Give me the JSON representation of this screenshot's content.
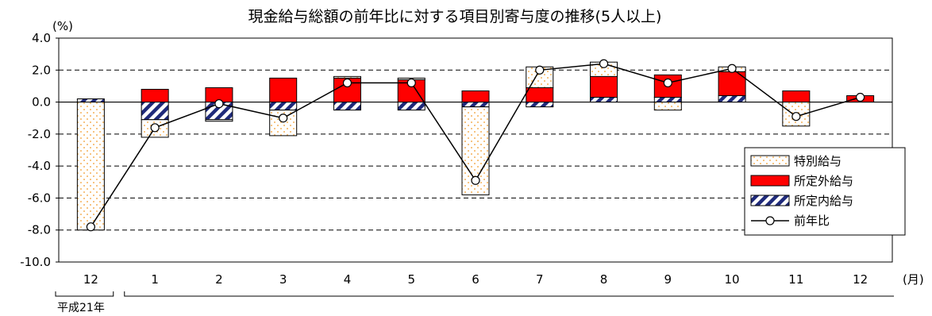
{
  "chart_data": {
    "type": "bar",
    "title": "現金給与総額の前年比に対する項目別寄与度の推移(5人以上)",
    "ylabel": "(%)",
    "xlabel": "(月)",
    "ylim": [
      -10,
      4
    ],
    "yticks": [
      "4.0",
      "2.0",
      "0.0",
      "-2.0",
      "-4.0",
      "-6.0",
      "-8.0",
      "-10.0"
    ],
    "grid": true,
    "legend_position": "right",
    "categories": [
      "12",
      "1",
      "2",
      "3",
      "4",
      "5",
      "6",
      "7",
      "8",
      "9",
      "10",
      "11",
      "12"
    ],
    "year_label": "平成21年",
    "series": [
      {
        "name": "特別給与",
        "values": [
          -8.0,
          -1.1,
          -0.1,
          -1.6,
          0.1,
          0.1,
          -5.5,
          1.3,
          0.9,
          -0.5,
          0.3,
          -1.5,
          0.0
        ]
      },
      {
        "name": "所定外給与",
        "values": [
          0.0,
          0.8,
          0.9,
          1.5,
          1.5,
          1.4,
          0.7,
          0.9,
          1.3,
          1.4,
          1.5,
          0.7,
          0.4
        ]
      },
      {
        "name": "所定内給与",
        "values": [
          0.2,
          -1.1,
          -1.1,
          -0.5,
          -0.5,
          -0.5,
          -0.3,
          -0.3,
          0.3,
          0.3,
          0.4,
          0.0,
          0.0
        ]
      }
    ],
    "line": {
      "name": "前年比",
      "values": [
        -7.8,
        -1.6,
        -0.1,
        -1.0,
        1.2,
        1.2,
        -4.9,
        2.0,
        2.4,
        1.2,
        2.1,
        -0.9,
        0.3
      ]
    }
  }
}
